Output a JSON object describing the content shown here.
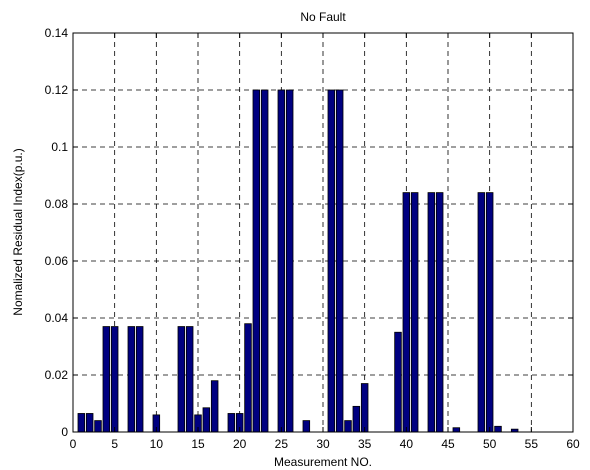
{
  "chart_data": {
    "type": "bar",
    "title": "No Fault",
    "xlabel": "Measurement NO.",
    "ylabel": "Nomalized Residual Index(p.u.)",
    "xlim": [
      0,
      60
    ],
    "ylim": [
      0,
      0.14
    ],
    "xticks": [
      0,
      5,
      10,
      15,
      20,
      25,
      30,
      35,
      40,
      45,
      50,
      55,
      60
    ],
    "yticks": [
      0,
      0.02,
      0.04,
      0.06,
      0.08,
      0.1,
      0.12,
      0.14
    ],
    "ytick_labels": [
      "0",
      "0.02",
      "0.04",
      "0.06",
      "0.08",
      "0.1",
      "0.12",
      "0.14"
    ],
    "grid": true,
    "bar_color": "#000080",
    "x": [
      1,
      2,
      3,
      4,
      5,
      6,
      7,
      8,
      9,
      10,
      11,
      12,
      13,
      14,
      15,
      16,
      17,
      18,
      19,
      20,
      21,
      22,
      23,
      24,
      25,
      26,
      27,
      28,
      29,
      30,
      31,
      32,
      33,
      34,
      35,
      36,
      37,
      38,
      39,
      40,
      41,
      42,
      43,
      44,
      45,
      46,
      47,
      48,
      49,
      50,
      51,
      52,
      53,
      54,
      55,
      56,
      57,
      58,
      59
    ],
    "values": [
      0.0065,
      0.0065,
      0.004,
      0.037,
      0.037,
      0,
      0.037,
      0.037,
      0,
      0.006,
      0,
      0,
      0.037,
      0.037,
      0.006,
      0.0085,
      0.018,
      0,
      0.0065,
      0.0065,
      0.038,
      0.12,
      0.12,
      0,
      0.12,
      0.12,
      0,
      0.004,
      0,
      0,
      0.12,
      0.12,
      0.004,
      0.009,
      0.017,
      0,
      0,
      0,
      0.035,
      0.084,
      0.084,
      0,
      0.084,
      0.084,
      0,
      0.0015,
      0,
      0,
      0.084,
      0.084,
      0.002,
      0,
      0.001,
      0,
      0,
      0,
      0,
      0,
      0
    ]
  }
}
